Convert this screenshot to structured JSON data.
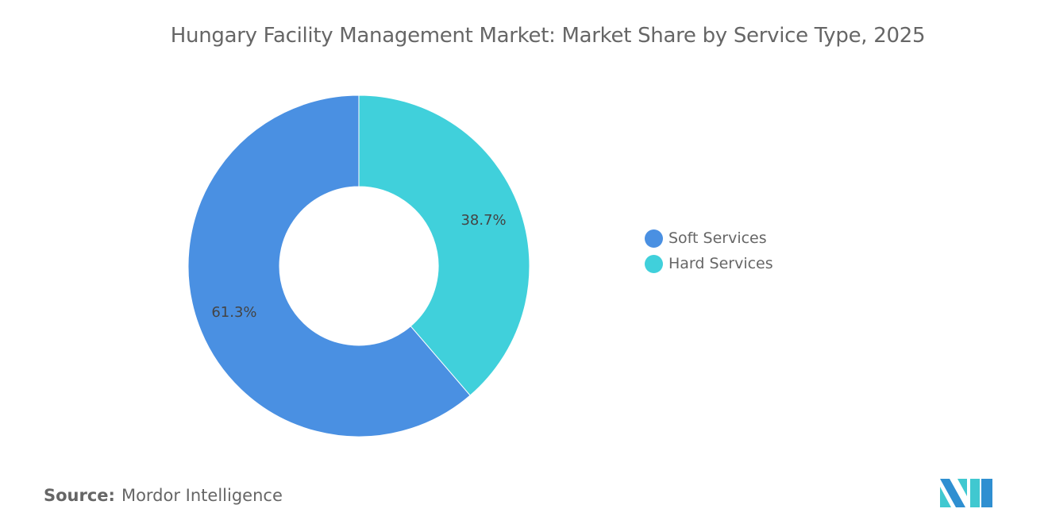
{
  "chart_data": {
    "type": "pie",
    "title": "Hungary Facility Management Market: Market Share by Service Type, 2025",
    "donut": true,
    "series": [
      {
        "name": "Soft Services",
        "value": 61.3,
        "label": "61.3%",
        "color": "#4a90e2"
      },
      {
        "name": "Hard Services",
        "value": 38.7,
        "label": "38.7%",
        "color": "#40d0db"
      }
    ],
    "legend_position": "right"
  },
  "source": {
    "label": "Source:",
    "value": "Mordor Intelligence"
  },
  "logo": {
    "text": "Mordor Intelligence"
  }
}
